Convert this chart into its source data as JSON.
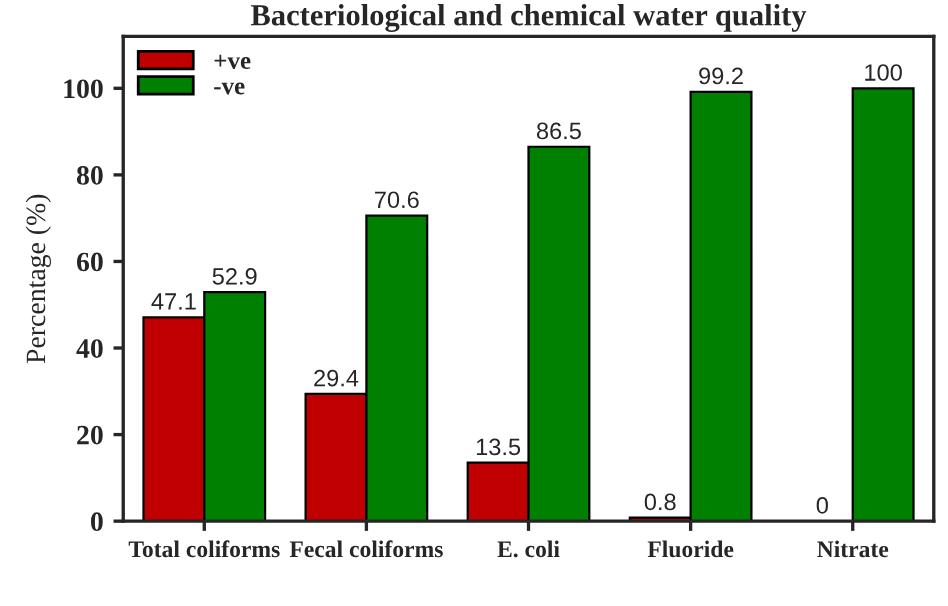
{
  "chart_data": {
    "type": "bar",
    "title": "Bacteriological and chemical water quality",
    "ylabel": "Percentage (%)",
    "categories": [
      "Total coliforms",
      "Fecal coliforms",
      "E. coli",
      "Fluoride",
      "Nitrate"
    ],
    "series": [
      {
        "name": "+ve",
        "color": "#c00000",
        "values": [
          47.1,
          29.4,
          13.5,
          0.8,
          0
        ]
      },
      {
        "name": "-ve",
        "color": "#008000",
        "values": [
          52.9,
          70.6,
          86.5,
          99.2,
          100
        ]
      }
    ],
    "ylim": [
      0,
      112
    ],
    "yticks": [
      0,
      20,
      40,
      60,
      80,
      100
    ],
    "data_labels": true,
    "legend": "top left",
    "grid": false
  }
}
